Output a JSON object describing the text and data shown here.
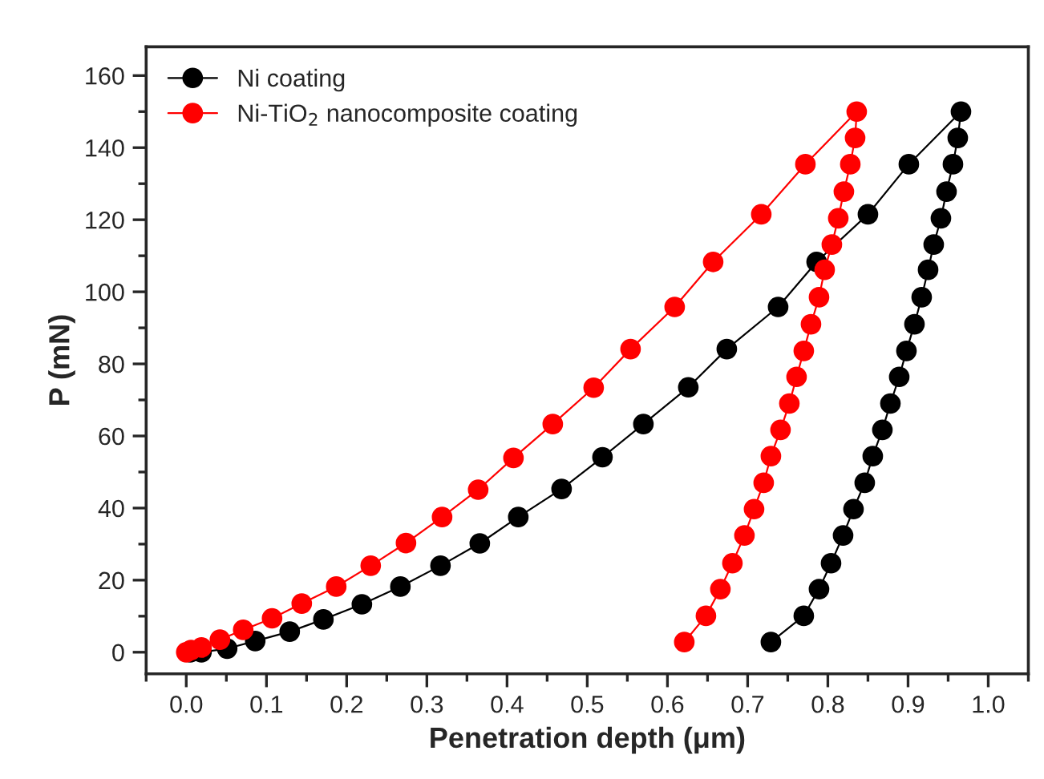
{
  "chart_data": {
    "type": "line",
    "xlabel": "Penetration depth (μm)",
    "ylabel": "P (mN)",
    "xlim": [
      -0.05,
      1.05
    ],
    "ylim": [
      -6,
      168
    ],
    "xticks": [
      {
        "value": 0,
        "label": "0.0"
      },
      0.1,
      0.2,
      0.3,
      0.4,
      0.5,
      0.6,
      0.7,
      0.8,
      0.9,
      {
        "value": 1,
        "label": "1.0"
      }
    ],
    "yticks": [
      0,
      20,
      40,
      60,
      80,
      100,
      120,
      140,
      160
    ],
    "grid": false,
    "legend": "top left",
    "marker": "circle",
    "line_style": "solid",
    "series": [
      {
        "name": "Ni coating",
        "color": "#000000",
        "x": [
          0.005,
          0.019,
          0.051,
          0.086,
          0.129,
          0.171,
          0.219,
          0.267,
          0.317,
          0.366,
          0.414,
          0.468,
          0.519,
          0.57,
          0.626,
          0.674,
          0.738,
          0.786,
          0.85,
          0.901,
          0.966,
          0.962,
          0.956,
          0.948,
          0.941,
          0.932,
          0.925,
          0.917,
          0.908,
          0.898,
          0.889,
          0.878,
          0.868,
          0.856,
          0.846,
          0.832,
          0.819,
          0.804,
          0.789,
          0.77,
          0.729
        ],
        "values": [
          0,
          0,
          1,
          3.1,
          5.7,
          9.1,
          13.3,
          18.2,
          24,
          30.2,
          37.5,
          45.3,
          54.1,
          63.3,
          73.5,
          84.1,
          95.8,
          108.3,
          121.5,
          135.4,
          150,
          142.7,
          135.4,
          127.8,
          120.4,
          113.1,
          106.1,
          98.5,
          91,
          83.6,
          76.4,
          69,
          61.7,
          54.4,
          47,
          39.7,
          32.4,
          24.7,
          17.5,
          10.1,
          2.8
        ]
      },
      {
        "name": "Ni-TiO$_{2}$ nanocomposite coating",
        "color": "#ff0000",
        "x": [
          0.0,
          0.006,
          0.019,
          0.042,
          0.071,
          0.107,
          0.144,
          0.187,
          0.23,
          0.274,
          0.319,
          0.364,
          0.408,
          0.457,
          0.508,
          0.554,
          0.609,
          0.657,
          0.717,
          0.772,
          0.836,
          0.834,
          0.828,
          0.82,
          0.813,
          0.805,
          0.796,
          0.789,
          0.779,
          0.77,
          0.761,
          0.752,
          0.741,
          0.729,
          0.72,
          0.708,
          0.696,
          0.681,
          0.666,
          0.648,
          0.621
        ],
        "values": [
          0,
          0.6,
          1.3,
          3.5,
          6.2,
          9.4,
          13.5,
          18.2,
          24,
          30.3,
          37.5,
          45.1,
          53.9,
          63.3,
          73.4,
          84.1,
          95.8,
          108.3,
          121.5,
          135.4,
          150,
          142.7,
          135.4,
          127.8,
          120.4,
          113.1,
          106.1,
          98.5,
          91,
          83.6,
          76.4,
          69,
          61.7,
          54.4,
          47,
          39.7,
          32.4,
          24.7,
          17.5,
          10.1,
          2.8
        ]
      }
    ]
  }
}
